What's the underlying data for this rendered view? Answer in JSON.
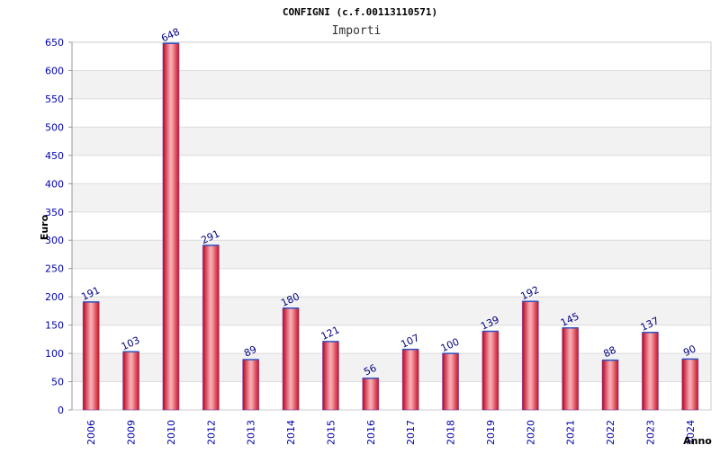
{
  "chart_data": {
    "type": "bar",
    "title": "CONFIGNI (c.f.00113110571)",
    "subtitle": "Importi",
    "xlabel": "Anno",
    "ylabel": "Euro",
    "ylim": [
      0,
      650
    ],
    "yticks": [
      0,
      50,
      100,
      150,
      200,
      250,
      300,
      350,
      400,
      450,
      500,
      550,
      600,
      650
    ],
    "categories": [
      "2006",
      "2009",
      "2010",
      "2012",
      "2013",
      "2014",
      "2015",
      "2016",
      "2017",
      "2018",
      "2019",
      "2020",
      "2021",
      "2022",
      "2023",
      "2024"
    ],
    "values": [
      191,
      103,
      648,
      291,
      89,
      180,
      121,
      56,
      107,
      100,
      139,
      192,
      145,
      88,
      137,
      90
    ],
    "data_labels": [
      "191",
      "103",
      "648",
      "291",
      "89",
      "180",
      "121",
      "56",
      "107",
      "100",
      "139",
      "192",
      "145",
      "88",
      "137",
      "90"
    ],
    "grid": true,
    "colors": {
      "bar_edge": "#c00020",
      "bar_center": "#f4a0a8",
      "bar_main": "#e8202c",
      "band": "#f2f2f2",
      "axis_text": "#0000aa"
    }
  }
}
